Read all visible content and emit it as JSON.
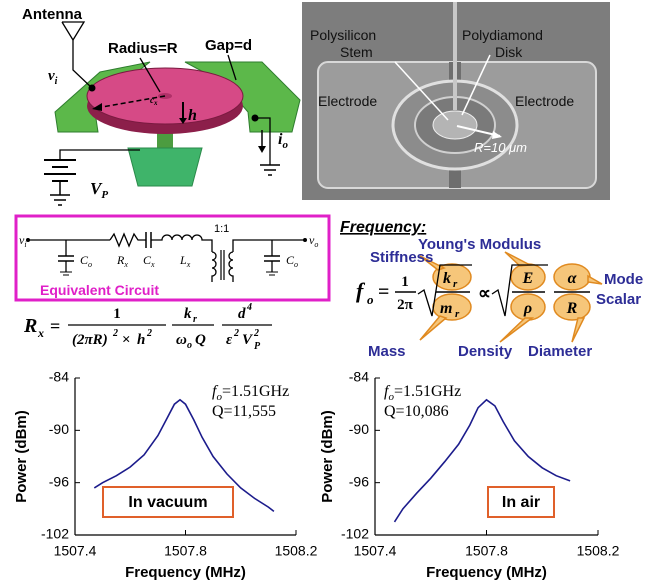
{
  "schematic": {
    "antenna": "Antenna",
    "vi": [
      "v",
      "i"
    ],
    "radius": "Radius=R",
    "gap": "Gap=d",
    "h": "h",
    "cx": [
      "c",
      "x"
    ],
    "io": [
      "i",
      "o"
    ],
    "vp": [
      "V",
      "P"
    ]
  },
  "sem": {
    "stem": [
      "Polysilicon",
      "Stem"
    ],
    "disk": [
      "Polydiamond",
      "Disk"
    ],
    "electrodes": [
      "Electrode",
      "Electrode"
    ],
    "radius": "R=10 μm"
  },
  "circuit": {
    "title": "Equivalent Circuit",
    "vi": [
      "v",
      "i"
    ],
    "co_in": [
      "C",
      "o"
    ],
    "rx": [
      "R",
      "x"
    ],
    "cx": [
      "C",
      "x"
    ],
    "lx": [
      "L",
      "x"
    ],
    "ratio": "1:1",
    "co_out": [
      "C",
      "o"
    ],
    "vo": [
      "v",
      "o"
    ]
  },
  "frequency": {
    "title": "Frequency",
    "colon": ":",
    "formula": [
      "f",
      "o",
      "=",
      "1",
      "2π",
      "k",
      "r",
      "m",
      "r",
      "∝",
      "E",
      "ρ",
      "α",
      "R"
    ],
    "labels": {
      "stiffness": "Stiffness",
      "youngs": "Young's Modulus",
      "mode": [
        "Mode",
        "Scalar"
      ],
      "mass": "Mass",
      "density": "Density",
      "diameter": "Diameter"
    }
  },
  "rx_formula": [
    "R",
    "x",
    "=",
    "1",
    "(2πR)",
    "2",
    "×",
    "h",
    "2",
    "k",
    "r",
    "ω",
    "o",
    "Q",
    "d",
    "4",
    "ε",
    "2",
    "V",
    "P",
    "2"
  ],
  "chart_data": [
    {
      "type": "line",
      "x_label": "Frequency (MHz)",
      "y_label": "Power (dBm)",
      "xlim": [
        1507.4,
        1508.2
      ],
      "xticks": [
        1507.4,
        1507.8,
        1508.2
      ],
      "ylim": [
        -102,
        -84
      ],
      "yticks": [
        -84,
        -90,
        -96,
        -102
      ],
      "color": "#1c1c8c",
      "x": [
        1507.47,
        1507.5,
        1507.55,
        1507.6,
        1507.65,
        1507.7,
        1507.73,
        1507.76,
        1507.78,
        1507.8,
        1507.83,
        1507.86,
        1507.9,
        1507.95,
        1508.0,
        1508.05,
        1508.1,
        1508.12
      ],
      "values": [
        -96.6,
        -96.0,
        -95.2,
        -94.2,
        -92.8,
        -90.6,
        -88.8,
        -87.0,
        -86.5,
        -87.0,
        -88.8,
        -90.8,
        -93.0,
        -95.0,
        -96.6,
        -97.8,
        -98.8,
        -99.3
      ],
      "annotation_fo": [
        "f",
        "o",
        "=1.51GHz"
      ],
      "annotation_q": "Q=11,555",
      "label": "In vacuum"
    },
    {
      "type": "line",
      "x_label": "Frequency (MHz)",
      "y_label": "Power (dBm)",
      "xlim": [
        1507.4,
        1508.2
      ],
      "xticks": [
        1507.4,
        1507.8,
        1508.2
      ],
      "ylim": [
        -102,
        -84
      ],
      "yticks": [
        -84,
        -90,
        -96,
        -102
      ],
      "color": "#1c1c8c",
      "x": [
        1507.47,
        1507.5,
        1507.55,
        1507.6,
        1507.65,
        1507.7,
        1507.74,
        1507.77,
        1507.8,
        1507.83,
        1507.86,
        1507.9,
        1507.95,
        1508.0,
        1508.05,
        1508.1
      ],
      "values": [
        -100.5,
        -99.0,
        -97.2,
        -95.5,
        -93.6,
        -91.6,
        -89.4,
        -87.4,
        -86.5,
        -87.2,
        -89.0,
        -91.2,
        -93.0,
        -94.3,
        -95.2,
        -95.8
      ],
      "annotation_fo": [
        "f",
        "o",
        "=1.51GHz"
      ],
      "annotation_q": "Q=10,086",
      "label": "In air"
    }
  ]
}
